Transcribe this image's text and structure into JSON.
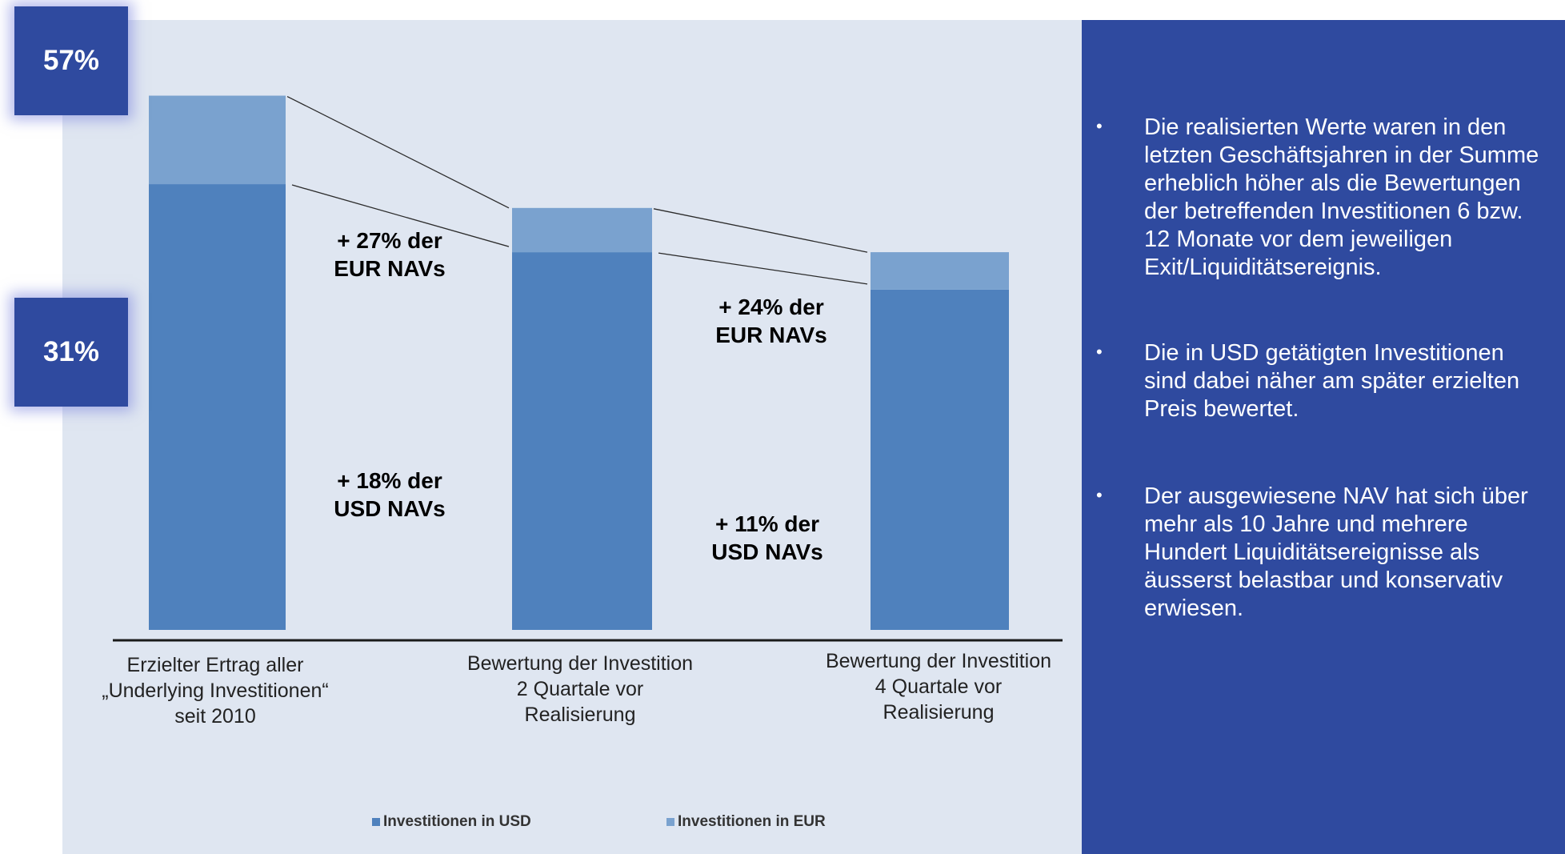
{
  "colors": {
    "usd": "#4f81bd",
    "eur": "#7aa2cf",
    "panel_bg": "#dfe6f1",
    "side_bg": "#2f4a9f",
    "callout_bg": "#2f4a9f"
  },
  "callouts": {
    "top": "57%",
    "bottom": "31%"
  },
  "annotations": {
    "eur_1": [
      "+ 27% der",
      "EUR NAVs"
    ],
    "usd_1": [
      "+ 18% der",
      "USD NAVs"
    ],
    "eur_2": [
      "+ 24% der",
      "EUR NAVs"
    ],
    "usd_2": [
      "+ 11% der",
      "USD NAVs"
    ]
  },
  "chart_data": {
    "type": "bar",
    "stacked": true,
    "categories": [
      [
        "Erzielter Ertrag aller",
        "„Underlying Investitionen“",
        "seit 2010"
      ],
      [
        "Bewertung der Investition",
        "2 Quartale vor",
        "Realisierung"
      ],
      [
        "Bewertung der Investition",
        "4 Quartale vor",
        "Realisierung"
      ]
    ],
    "series": [
      {
        "name": "Investitionen in USD",
        "values": [
          1.31,
          1.11,
          1.0
        ]
      },
      {
        "name": "Investitionen in EUR",
        "values": [
          0.26,
          0.13,
          0.11
        ]
      }
    ],
    "ylim": [
      0,
      1.71
    ],
    "legend": [
      "Investitionen in USD",
      "Investitionen in EUR"
    ],
    "legend_position": "bottom",
    "grid": false
  },
  "bullets": [
    "Die realisierten Werte waren in den letzten Geschäftsjahren in der Summe erheblich höher als die Bewertungen der betreffenden Investitionen 6 bzw. 12 Monate vor dem jeweiligen Exit/Liquiditätsereignis.",
    "Die in USD getätigten Investitionen sind dabei näher am später erzielten Preis bewertet.",
    "Der ausgewiesene NAV hat sich über mehr als 10 Jahre und mehrere Hundert Liquiditätsereignisse als äusserst belastbar und konservativ erwiesen."
  ],
  "bullet_symbol": "•"
}
